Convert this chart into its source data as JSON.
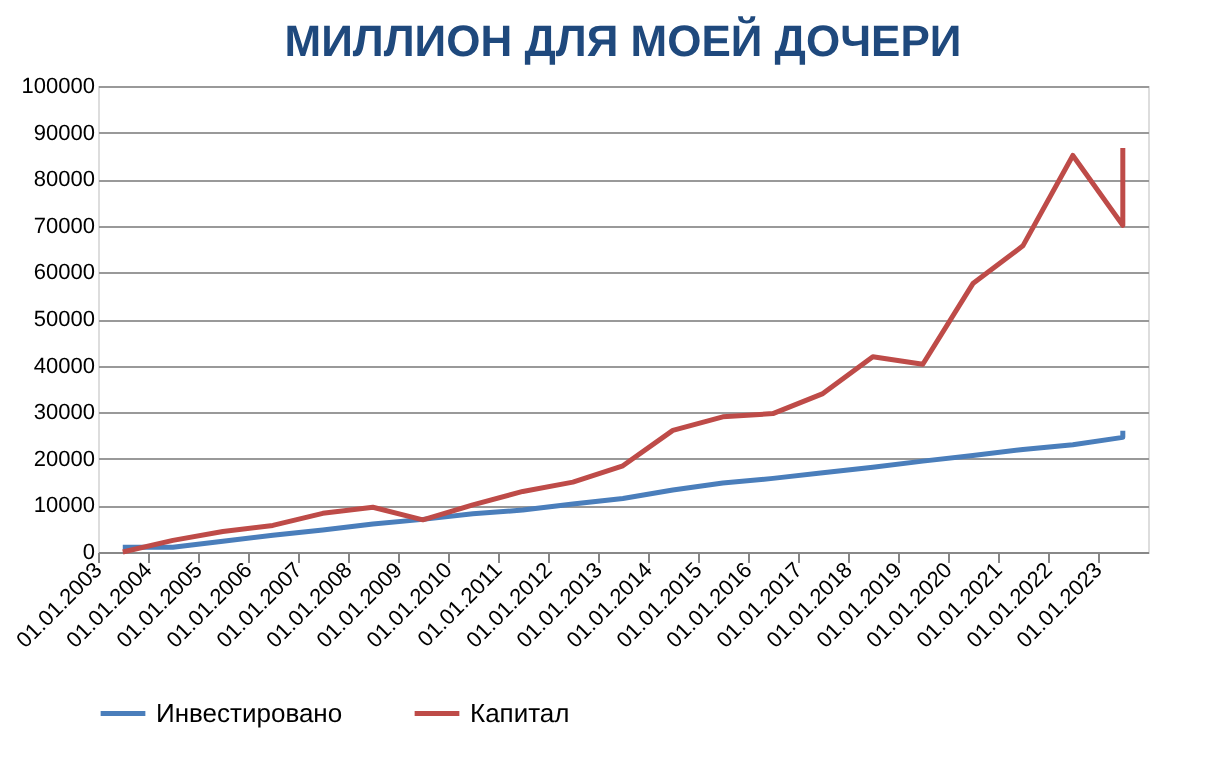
{
  "chart_data": {
    "type": "line",
    "title": "МИЛЛИОН ДЛЯ МОЕЙ ДОЧЕРИ",
    "x": [
      "2003-07-01",
      "2004-07-01",
      "2005-07-01",
      "2006-07-01",
      "2007-07-01",
      "2008-07-01",
      "2009-07-01",
      "2010-07-01",
      "2011-07-01",
      "2012-07-01",
      "2013-07-01",
      "2014-07-01",
      "2015-07-01",
      "2016-07-01",
      "2017-07-01",
      "2018-07-01",
      "2019-07-01",
      "2020-07-01",
      "2021-07-01",
      "2022-07-01",
      "2023-07-01",
      "2023-07-01"
    ],
    "series": [
      {
        "name": "Инвестировано",
        "color": "#4a7ebb",
        "values": [
          1000,
          1000,
          2300,
          3600,
          4700,
          6000,
          7000,
          8200,
          9000,
          10300,
          11500,
          13300,
          14800,
          15800,
          17000,
          18200,
          19500,
          20700,
          22000,
          23000,
          24600,
          26000
        ]
      },
      {
        "name": "Капитал",
        "color": "#be4b48",
        "values": [
          0,
          2500,
          4400,
          5700,
          8300,
          9600,
          6900,
          10100,
          13000,
          15000,
          18500,
          26100,
          29000,
          29700,
          34000,
          41900,
          40300,
          57600,
          65700,
          85100,
          70100,
          86700
        ]
      }
    ],
    "xlim": [
      "2003-01-01",
      "2024-01-01"
    ],
    "xticks": [
      {
        "value": "2003-01-01",
        "label": "01.01.2003"
      },
      {
        "value": "2004-01-01",
        "label": "01.01.2004"
      },
      {
        "value": "2005-01-01",
        "label": "01.01.2005"
      },
      {
        "value": "2006-01-01",
        "label": "01.01.2006"
      },
      {
        "value": "2007-01-01",
        "label": "01.01.2007"
      },
      {
        "value": "2008-01-01",
        "label": "01.01.2008"
      },
      {
        "value": "2009-01-01",
        "label": "01.01.2009"
      },
      {
        "value": "2010-01-01",
        "label": "01.01.2010"
      },
      {
        "value": "2011-01-01",
        "label": "01.01.2011"
      },
      {
        "value": "2012-01-01",
        "label": "01.01.2012"
      },
      {
        "value": "2013-01-01",
        "label": "01.01.2013"
      },
      {
        "value": "2014-01-01",
        "label": "01.01.2014"
      },
      {
        "value": "2015-01-01",
        "label": "01.01.2015"
      },
      {
        "value": "2016-01-01",
        "label": "01.01.2016"
      },
      {
        "value": "2017-01-01",
        "label": "01.01.2017"
      },
      {
        "value": "2018-01-01",
        "label": "01.01.2018"
      },
      {
        "value": "2019-01-01",
        "label": "01.01.2019"
      },
      {
        "value": "2020-01-01",
        "label": "01.01.2020"
      },
      {
        "value": "2021-01-01",
        "label": "01.01.2021"
      },
      {
        "value": "2022-01-01",
        "label": "01.01.2022"
      },
      {
        "value": "2023-01-01",
        "label": "01.01.2023"
      }
    ],
    "ylim": [
      0,
      100000
    ],
    "yticks": [
      0,
      10000,
      20000,
      30000,
      40000,
      50000,
      60000,
      70000,
      80000,
      90000,
      100000
    ],
    "grid": "y",
    "legend": "bottom",
    "marker": "none",
    "line_style": "solid"
  }
}
